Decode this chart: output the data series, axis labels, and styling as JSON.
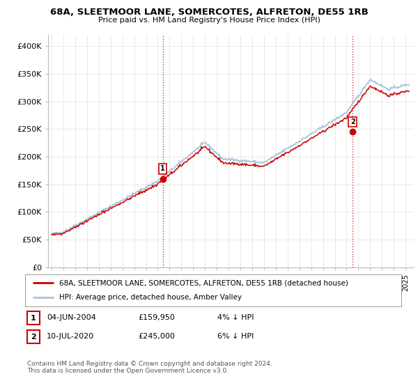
{
  "title_line1": "68A, SLEETMOOR LANE, SOMERCOTES, ALFRETON, DE55 1RB",
  "title_line2": "Price paid vs. HM Land Registry's House Price Index (HPI)",
  "ylabel_ticks": [
    "£0",
    "£50K",
    "£100K",
    "£150K",
    "£200K",
    "£250K",
    "£300K",
    "£350K",
    "£400K"
  ],
  "ytick_values": [
    0,
    50000,
    100000,
    150000,
    200000,
    250000,
    300000,
    350000,
    400000
  ],
  "ylim": [
    0,
    420000
  ],
  "hpi_color": "#a8c4e0",
  "price_color": "#cc0000",
  "marker1_date": 2004.42,
  "marker1_price": 159950,
  "marker2_date": 2020.52,
  "marker2_price": 245000,
  "legend_label1": "68A, SLEETMOOR LANE, SOMERCOTES, ALFRETON, DE55 1RB (detached house)",
  "legend_label2": "HPI: Average price, detached house, Amber Valley",
  "table_row1": [
    "1",
    "04-JUN-2004",
    "£159,950",
    "4% ↓ HPI"
  ],
  "table_row2": [
    "2",
    "10-JUL-2020",
    "£245,000",
    "6% ↓ HPI"
  ],
  "footnote": "Contains HM Land Registry data © Crown copyright and database right 2024.\nThis data is licensed under the Open Government Licence v3.0.",
  "bg_color": "#ffffff",
  "grid_color": "#e0e0e0"
}
